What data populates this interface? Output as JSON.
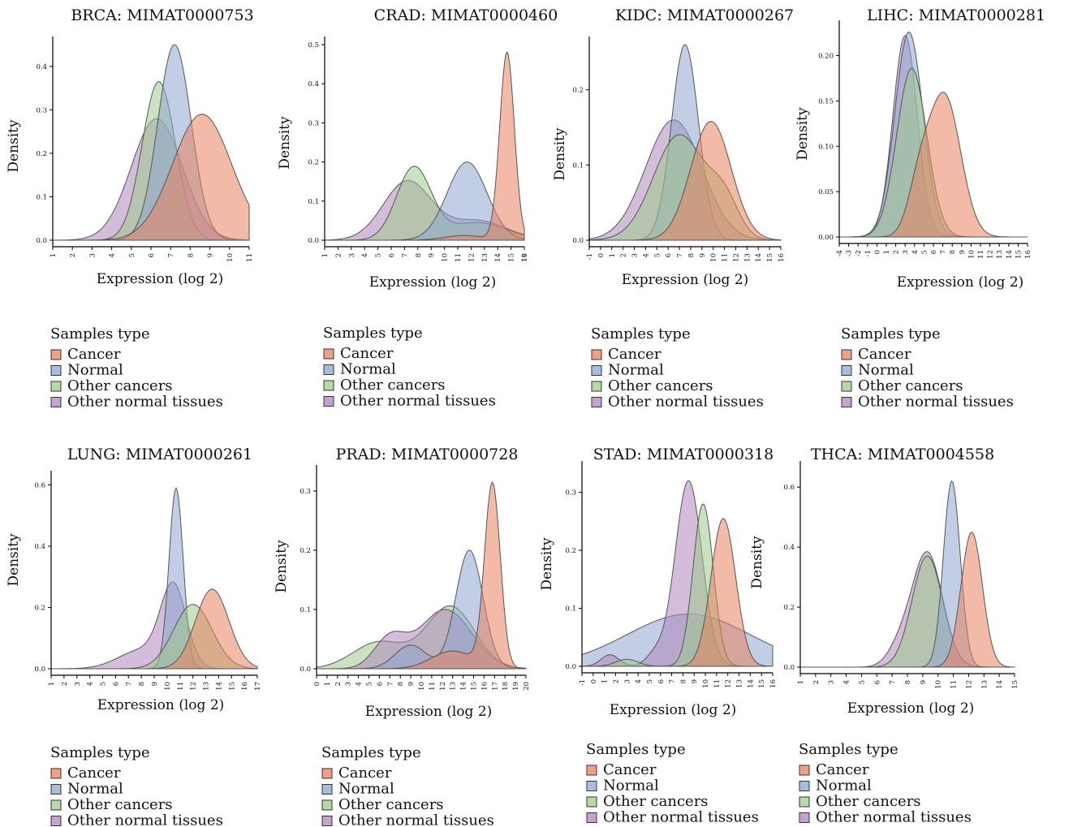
{
  "legend_title": "Samples type",
  "colors": {
    "Cancer": "#E8825E",
    "Normal": "#8EA6D0",
    "Other cancers": "#9FCB8A",
    "Other normal tissues": "#AE86BE"
  },
  "chart_data": [
    {
      "type": "area",
      "title": "BRCA: MIMAT0000753",
      "xlabel": "Expression (log 2)",
      "ylabel": "Density",
      "xlim": [
        1,
        11
      ],
      "ylim": [
        0,
        0.45
      ],
      "x_ticks": [
        "1",
        "2",
        "3",
        "4",
        "5",
        "6",
        "7",
        "8",
        "9",
        "10",
        "11"
      ],
      "y_ticks": [
        "0.0",
        "0.1",
        "0.2",
        "0.3",
        "0.4"
      ],
      "series": [
        {
          "name": "Other normal tissues",
          "components": [
            [
              6.3,
              1.3,
              0.28
            ]
          ]
        },
        {
          "name": "Other cancers",
          "components": [
            [
              6.4,
              0.85,
              0.365
            ]
          ]
        },
        {
          "name": "Normal",
          "components": [
            [
              7.2,
              0.85,
              0.45
            ]
          ]
        },
        {
          "name": "Cancer",
          "components": [
            [
              8.6,
              1.5,
              0.29
            ]
          ]
        }
      ]
    },
    {
      "type": "area",
      "title": "CRAD: MIMAT0000460",
      "xlabel": "Expression (log 2)",
      "ylabel": "Density",
      "xlim": [
        1,
        16
      ],
      "ylim": [
        0,
        0.5
      ],
      "x_ticks": [
        "1",
        "2",
        "3",
        "4",
        "5",
        "6",
        "7",
        "8",
        "9",
        "10",
        "11",
        "12",
        "13",
        "14",
        "15",
        "16",
        "17"
      ],
      "y_ticks": [
        "0.0",
        "0.1",
        "0.2",
        "0.3",
        "0.4",
        "0.5"
      ],
      "series": [
        {
          "name": "Other normal tissues",
          "components": [
            [
              7.2,
              1.8,
              0.15
            ],
            [
              12.5,
              2.2,
              0.05
            ]
          ]
        },
        {
          "name": "Other cancers",
          "components": [
            [
              7.7,
              1.3,
              0.185
            ],
            [
              12.5,
              2.2,
              0.045
            ]
          ]
        },
        {
          "name": "Normal",
          "components": [
            [
              11.7,
              1.5,
              0.2
            ]
          ]
        },
        {
          "name": "Cancer",
          "components": [
            [
              14.7,
              0.55,
              0.48
            ],
            [
              11.5,
              1.5,
              0.012
            ]
          ]
        }
      ]
    },
    {
      "type": "area",
      "title": "KIDC: MIMAT0000267",
      "xlabel": "Expression (log 2)",
      "ylabel": "Density",
      "xlim": [
        -1,
        16
      ],
      "ylim": [
        0,
        0.26
      ],
      "x_ticks": [
        "-1",
        "0",
        "1",
        "2",
        "3",
        "4",
        "5",
        "6",
        "7",
        "8",
        "9",
        "10",
        "11",
        "12",
        "13",
        "14",
        "15",
        "16"
      ],
      "y_ticks": [
        "0.0",
        "0.1",
        "0.2"
      ],
      "series": [
        {
          "name": "Other normal tissues",
          "components": [
            [
              6.5,
              2.5,
              0.16
            ]
          ]
        },
        {
          "name": "Normal",
          "components": [
            [
              7.5,
              1.2,
              0.26
            ]
          ]
        },
        {
          "name": "Other cancers",
          "components": [
            [
              7.0,
              2.3,
              0.14
            ],
            [
              11.0,
              1.3,
              0.045
            ]
          ]
        },
        {
          "name": "Cancer",
          "components": [
            [
              9.8,
              1.8,
              0.158
            ]
          ]
        }
      ]
    },
    {
      "type": "area",
      "title": "LIHC: MIMAT0000281",
      "xlabel": "Expression (log 2)",
      "ylabel": "Density",
      "xlim": [
        -4,
        16
      ],
      "ylim": [
        0,
        0.23
      ],
      "x_ticks": [
        "-4",
        "-3",
        "-2",
        "-1",
        "0",
        "1",
        "2",
        "3",
        "4",
        "5",
        "6",
        "7",
        "8",
        "9",
        "10",
        "11",
        "12",
        "13",
        "14",
        "15",
        "16"
      ],
      "y_ticks": [
        "0.00",
        "0.05",
        "0.10",
        "0.15",
        "0.20"
      ],
      "series": [
        {
          "name": "Other normal tissues",
          "components": [
            [
              3.0,
              1.3,
              0.222
            ]
          ]
        },
        {
          "name": "Normal",
          "components": [
            [
              3.4,
              1.5,
              0.226
            ]
          ]
        },
        {
          "name": "Other cancers",
          "components": [
            [
              3.7,
              1.6,
              0.186
            ]
          ]
        },
        {
          "name": "Cancer",
          "components": [
            [
              7.2,
              1.7,
              0.155
            ],
            [
              4.5,
              1.2,
              0.05
            ]
          ]
        }
      ]
    },
    {
      "type": "area",
      "title": "LUNG: MIMAT0000261",
      "xlabel": "Expression (log 2)",
      "ylabel": "Density",
      "xlim": [
        1,
        17
      ],
      "ylim": [
        0,
        0.62
      ],
      "x_ticks": [
        "1",
        "2",
        "3",
        "4",
        "5",
        "6",
        "7",
        "8",
        "9",
        "10",
        "11",
        "12",
        "13",
        "14",
        "15",
        "16",
        "17"
      ],
      "y_ticks": [
        "0.0",
        "0.2",
        "0.4",
        "0.6"
      ],
      "series": [
        {
          "name": "Other normal tissues",
          "components": [
            [
              10.5,
              1.0,
              0.26
            ],
            [
              8.0,
              1.8,
              0.06
            ]
          ]
        },
        {
          "name": "Normal",
          "components": [
            [
              10.7,
              0.55,
              0.59
            ]
          ]
        },
        {
          "name": "Other cancers",
          "components": [
            [
              12.0,
              1.5,
              0.21
            ]
          ]
        },
        {
          "name": "Cancer",
          "components": [
            [
              13.5,
              1.3,
              0.26
            ]
          ]
        }
      ]
    },
    {
      "type": "area",
      "title": "PRAD: MIMAT0000728",
      "xlabel": "Expression (log 2)",
      "ylabel": "Density",
      "xlim": [
        0,
        20
      ],
      "ylim": [
        0,
        0.33
      ],
      "x_ticks": [
        "0",
        "1",
        "2",
        "3",
        "4",
        "5",
        "6",
        "7",
        "8",
        "9",
        "10",
        "11",
        "12",
        "13",
        "14",
        "15",
        "16",
        "17",
        "18",
        "19",
        "20"
      ],
      "y_ticks": [
        "0.0",
        "0.1",
        "0.2",
        "0.3"
      ],
      "series": [
        {
          "name": "Other cancers",
          "components": [
            [
              12.8,
              2.3,
              0.105
            ],
            [
              6.0,
              2.5,
              0.045
            ]
          ]
        },
        {
          "name": "Other normal tissues",
          "components": [
            [
              12.3,
              2.5,
              0.1
            ],
            [
              7.0,
              1.5,
              0.05
            ]
          ]
        },
        {
          "name": "Normal",
          "components": [
            [
              14.6,
              1.3,
              0.2
            ],
            [
              9.0,
              1.5,
              0.04
            ]
          ]
        },
        {
          "name": "Cancer",
          "components": [
            [
              16.8,
              0.75,
              0.31
            ],
            [
              13.0,
              2.0,
              0.03
            ]
          ]
        }
      ]
    },
    {
      "type": "area",
      "title": "STAD: MIMAT0000318",
      "xlabel": "Expression (log 2)",
      "ylabel": "Density",
      "xlim": [
        -1,
        16
      ],
      "ylim": [
        0,
        0.34
      ],
      "x_ticks": [
        "-1",
        "0",
        "1",
        "2",
        "3",
        "4",
        "5",
        "6",
        "7",
        "8",
        "9",
        "10",
        "11",
        "12",
        "13",
        "14",
        "15",
        "16"
      ],
      "y_ticks": [
        "0.0",
        "0.1",
        "0.2",
        "0.3"
      ],
      "series": [
        {
          "name": "Normal",
          "components": [
            [
              8.5,
              5.5,
              0.09
            ]
          ]
        },
        {
          "name": "Other normal tissues",
          "components": [
            [
              8.5,
              1.2,
              0.32
            ],
            [
              1.5,
              0.8,
              0.02
            ],
            [
              5.5,
              0.8,
              0.02
            ]
          ]
        },
        {
          "name": "Other cancers",
          "components": [
            [
              9.8,
              0.9,
              0.28
            ],
            [
              3.0,
              1.0,
              0.012
            ]
          ]
        },
        {
          "name": "Cancer",
          "components": [
            [
              11.6,
              1.1,
              0.255
            ]
          ]
        }
      ]
    },
    {
      "type": "area",
      "title": "THCA: MIMAT0004558",
      "xlabel": "Expression (log 2)",
      "ylabel": "Density",
      "xlim": [
        1,
        15
      ],
      "ylim": [
        0,
        0.66
      ],
      "x_ticks": [
        "1",
        "2",
        "3",
        "4",
        "5",
        "6",
        "7",
        "8",
        "9",
        "10",
        "11",
        "12",
        "13",
        "14",
        "15"
      ],
      "y_ticks": [
        "0.0",
        "0.2",
        "0.4",
        "0.6"
      ],
      "series": [
        {
          "name": "Other normal tissues",
          "components": [
            [
              9.3,
              1.0,
              0.38
            ],
            [
              7.5,
              0.8,
              0.06
            ]
          ]
        },
        {
          "name": "Other cancers",
          "components": [
            [
              9.3,
              1.0,
              0.37
            ]
          ]
        },
        {
          "name": "Normal",
          "components": [
            [
              10.9,
              0.55,
              0.62
            ]
          ]
        },
        {
          "name": "Cancer",
          "components": [
            [
              12.2,
              0.7,
              0.45
            ]
          ]
        }
      ]
    }
  ]
}
